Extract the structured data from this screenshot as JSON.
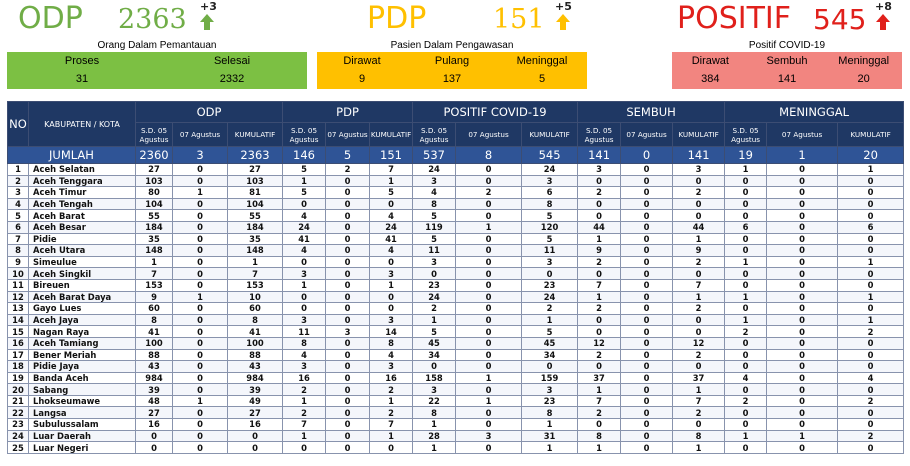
{
  "summary": {
    "odp": {
      "label": "ODP",
      "total": "2363",
      "delta": "+3",
      "subtitle": "Orang Dalam Pemantauan",
      "items": [
        {
          "label": "Proses",
          "value": "31"
        },
        {
          "label": "Selesai",
          "value": "2332"
        }
      ],
      "color": "#70ad47",
      "box_color": "#7cc043"
    },
    "pdp": {
      "label": "PDP",
      "total": "151",
      "delta": "+5",
      "subtitle": "Pasien Dalam Pengawasan",
      "items": [
        {
          "label": "Dirawat",
          "value": "9"
        },
        {
          "label": "Pulang",
          "value": "137"
        },
        {
          "label": "Meninggal",
          "value": "5"
        }
      ],
      "color": "#ffc000",
      "box_color": "#ffc000"
    },
    "positif": {
      "label": "POSITIF",
      "total": "545",
      "delta": "+8",
      "subtitle": "Positif COVID-19",
      "items": [
        {
          "label": "Dirawat",
          "value": "384"
        },
        {
          "label": "Sembuh",
          "value": "141"
        },
        {
          "label": "Meninggal",
          "value": "20"
        }
      ],
      "color": "#e0201b",
      "box_color": "#f28580"
    }
  },
  "table": {
    "no_header": "NO",
    "region_header": "KABUPATEN / KOTA",
    "groups": [
      "ODP",
      "PDP",
      "POSITIF COVID-19",
      "SEMBUH",
      "MENINGGAL"
    ],
    "sub_headers": [
      "S.D. 05 Agustus",
      "07 Agustus",
      "KUMULATIF"
    ],
    "total_row": {
      "label": "JUMLAH",
      "values": [
        "2360",
        "3",
        "2363",
        "146",
        "5",
        "151",
        "537",
        "8",
        "545",
        "141",
        "0",
        "141",
        "19",
        "1",
        "20"
      ]
    },
    "rows": [
      {
        "no": "1",
        "name": "Aceh Selatan",
        "v": [
          "27",
          "0",
          "27",
          "5",
          "2",
          "7",
          "24",
          "0",
          "24",
          "3",
          "0",
          "3",
          "1",
          "0",
          "1"
        ]
      },
      {
        "no": "2",
        "name": "Aceh Tenggara",
        "v": [
          "103",
          "0",
          "103",
          "1",
          "0",
          "1",
          "3",
          "0",
          "3",
          "0",
          "0",
          "0",
          "0",
          "0",
          "0"
        ]
      },
      {
        "no": "3",
        "name": "Aceh Timur",
        "v": [
          "80",
          "1",
          "81",
          "5",
          "0",
          "5",
          "4",
          "2",
          "6",
          "2",
          "0",
          "2",
          "0",
          "0",
          "0"
        ]
      },
      {
        "no": "4",
        "name": "Aceh Tengah",
        "v": [
          "104",
          "0",
          "104",
          "0",
          "0",
          "0",
          "8",
          "0",
          "8",
          "0",
          "0",
          "0",
          "0",
          "0",
          "0"
        ]
      },
      {
        "no": "5",
        "name": "Aceh Barat",
        "v": [
          "55",
          "0",
          "55",
          "4",
          "0",
          "4",
          "5",
          "0",
          "5",
          "0",
          "0",
          "0",
          "0",
          "0",
          "0"
        ]
      },
      {
        "no": "6",
        "name": "Aceh Besar",
        "v": [
          "184",
          "0",
          "184",
          "24",
          "0",
          "24",
          "119",
          "1",
          "120",
          "44",
          "0",
          "44",
          "6",
          "0",
          "6"
        ]
      },
      {
        "no": "7",
        "name": "Pidie",
        "v": [
          "35",
          "0",
          "35",
          "41",
          "0",
          "41",
          "5",
          "0",
          "5",
          "1",
          "0",
          "1",
          "0",
          "0",
          "0"
        ]
      },
      {
        "no": "8",
        "name": "Aceh Utara",
        "v": [
          "148",
          "0",
          "148",
          "4",
          "0",
          "4",
          "11",
          "0",
          "11",
          "9",
          "0",
          "9",
          "0",
          "0",
          "0"
        ]
      },
      {
        "no": "9",
        "name": "Simeulue",
        "v": [
          "1",
          "0",
          "1",
          "0",
          "0",
          "0",
          "3",
          "0",
          "3",
          "2",
          "0",
          "2",
          "1",
          "0",
          "1"
        ]
      },
      {
        "no": "10",
        "name": "Aceh Singkil",
        "v": [
          "7",
          "0",
          "7",
          "3",
          "0",
          "3",
          "0",
          "0",
          "0",
          "0",
          "0",
          "0",
          "0",
          "0",
          "0"
        ]
      },
      {
        "no": "11",
        "name": "Bireuen",
        "v": [
          "153",
          "0",
          "153",
          "1",
          "0",
          "1",
          "23",
          "0",
          "23",
          "7",
          "0",
          "7",
          "0",
          "0",
          "0"
        ]
      },
      {
        "no": "12",
        "name": "Aceh Barat Daya",
        "v": [
          "9",
          "1",
          "10",
          "0",
          "0",
          "0",
          "24",
          "0",
          "24",
          "1",
          "0",
          "1",
          "1",
          "0",
          "1"
        ]
      },
      {
        "no": "13",
        "name": "Gayo Lues",
        "v": [
          "60",
          "0",
          "60",
          "0",
          "0",
          "0",
          "2",
          "0",
          "2",
          "2",
          "0",
          "2",
          "0",
          "0",
          "0"
        ]
      },
      {
        "no": "14",
        "name": "Aceh Jaya",
        "v": [
          "8",
          "0",
          "8",
          "3",
          "0",
          "3",
          "1",
          "0",
          "1",
          "0",
          "0",
          "0",
          "1",
          "0",
          "1"
        ]
      },
      {
        "no": "15",
        "name": "Nagan Raya",
        "v": [
          "41",
          "0",
          "41",
          "11",
          "3",
          "14",
          "5",
          "0",
          "5",
          "0",
          "0",
          "0",
          "2",
          "0",
          "2"
        ]
      },
      {
        "no": "16",
        "name": "Aceh Tamiang",
        "v": [
          "100",
          "0",
          "100",
          "8",
          "0",
          "8",
          "45",
          "0",
          "45",
          "12",
          "0",
          "12",
          "0",
          "0",
          "0"
        ]
      },
      {
        "no": "17",
        "name": "Bener Meriah",
        "v": [
          "88",
          "0",
          "88",
          "4",
          "0",
          "4",
          "34",
          "0",
          "34",
          "2",
          "0",
          "2",
          "0",
          "0",
          "0"
        ]
      },
      {
        "no": "18",
        "name": "Pidie Jaya",
        "v": [
          "43",
          "0",
          "43",
          "3",
          "0",
          "3",
          "0",
          "0",
          "0",
          "0",
          "0",
          "0",
          "0",
          "0",
          "0"
        ]
      },
      {
        "no": "19",
        "name": "Banda Aceh",
        "v": [
          "984",
          "0",
          "984",
          "16",
          "0",
          "16",
          "158",
          "1",
          "159",
          "37",
          "0",
          "37",
          "4",
          "0",
          "4"
        ]
      },
      {
        "no": "20",
        "name": "Sabang",
        "v": [
          "39",
          "0",
          "39",
          "2",
          "0",
          "2",
          "3",
          "0",
          "3",
          "1",
          "0",
          "1",
          "0",
          "0",
          "0"
        ]
      },
      {
        "no": "21",
        "name": "Lhokseumawe",
        "v": [
          "48",
          "1",
          "49",
          "1",
          "0",
          "1",
          "22",
          "1",
          "23",
          "7",
          "0",
          "7",
          "2",
          "0",
          "2"
        ]
      },
      {
        "no": "22",
        "name": "Langsa",
        "v": [
          "27",
          "0",
          "27",
          "2",
          "0",
          "2",
          "8",
          "0",
          "8",
          "2",
          "0",
          "2",
          "0",
          "0",
          "0"
        ]
      },
      {
        "no": "23",
        "name": "Subulussalam",
        "v": [
          "16",
          "0",
          "16",
          "7",
          "0",
          "7",
          "1",
          "0",
          "1",
          "0",
          "0",
          "0",
          "0",
          "0",
          "0"
        ]
      },
      {
        "no": "24",
        "name": "Luar Daerah",
        "v": [
          "0",
          "0",
          "0",
          "1",
          "0",
          "1",
          "28",
          "3",
          "31",
          "8",
          "0",
          "8",
          "1",
          "1",
          "2"
        ]
      },
      {
        "no": "25",
        "name": "Luar Negeri",
        "v": [
          "0",
          "0",
          "0",
          "0",
          "0",
          "0",
          "1",
          "0",
          "1",
          "1",
          "0",
          "1",
          "0",
          "0",
          "0"
        ]
      }
    ]
  }
}
